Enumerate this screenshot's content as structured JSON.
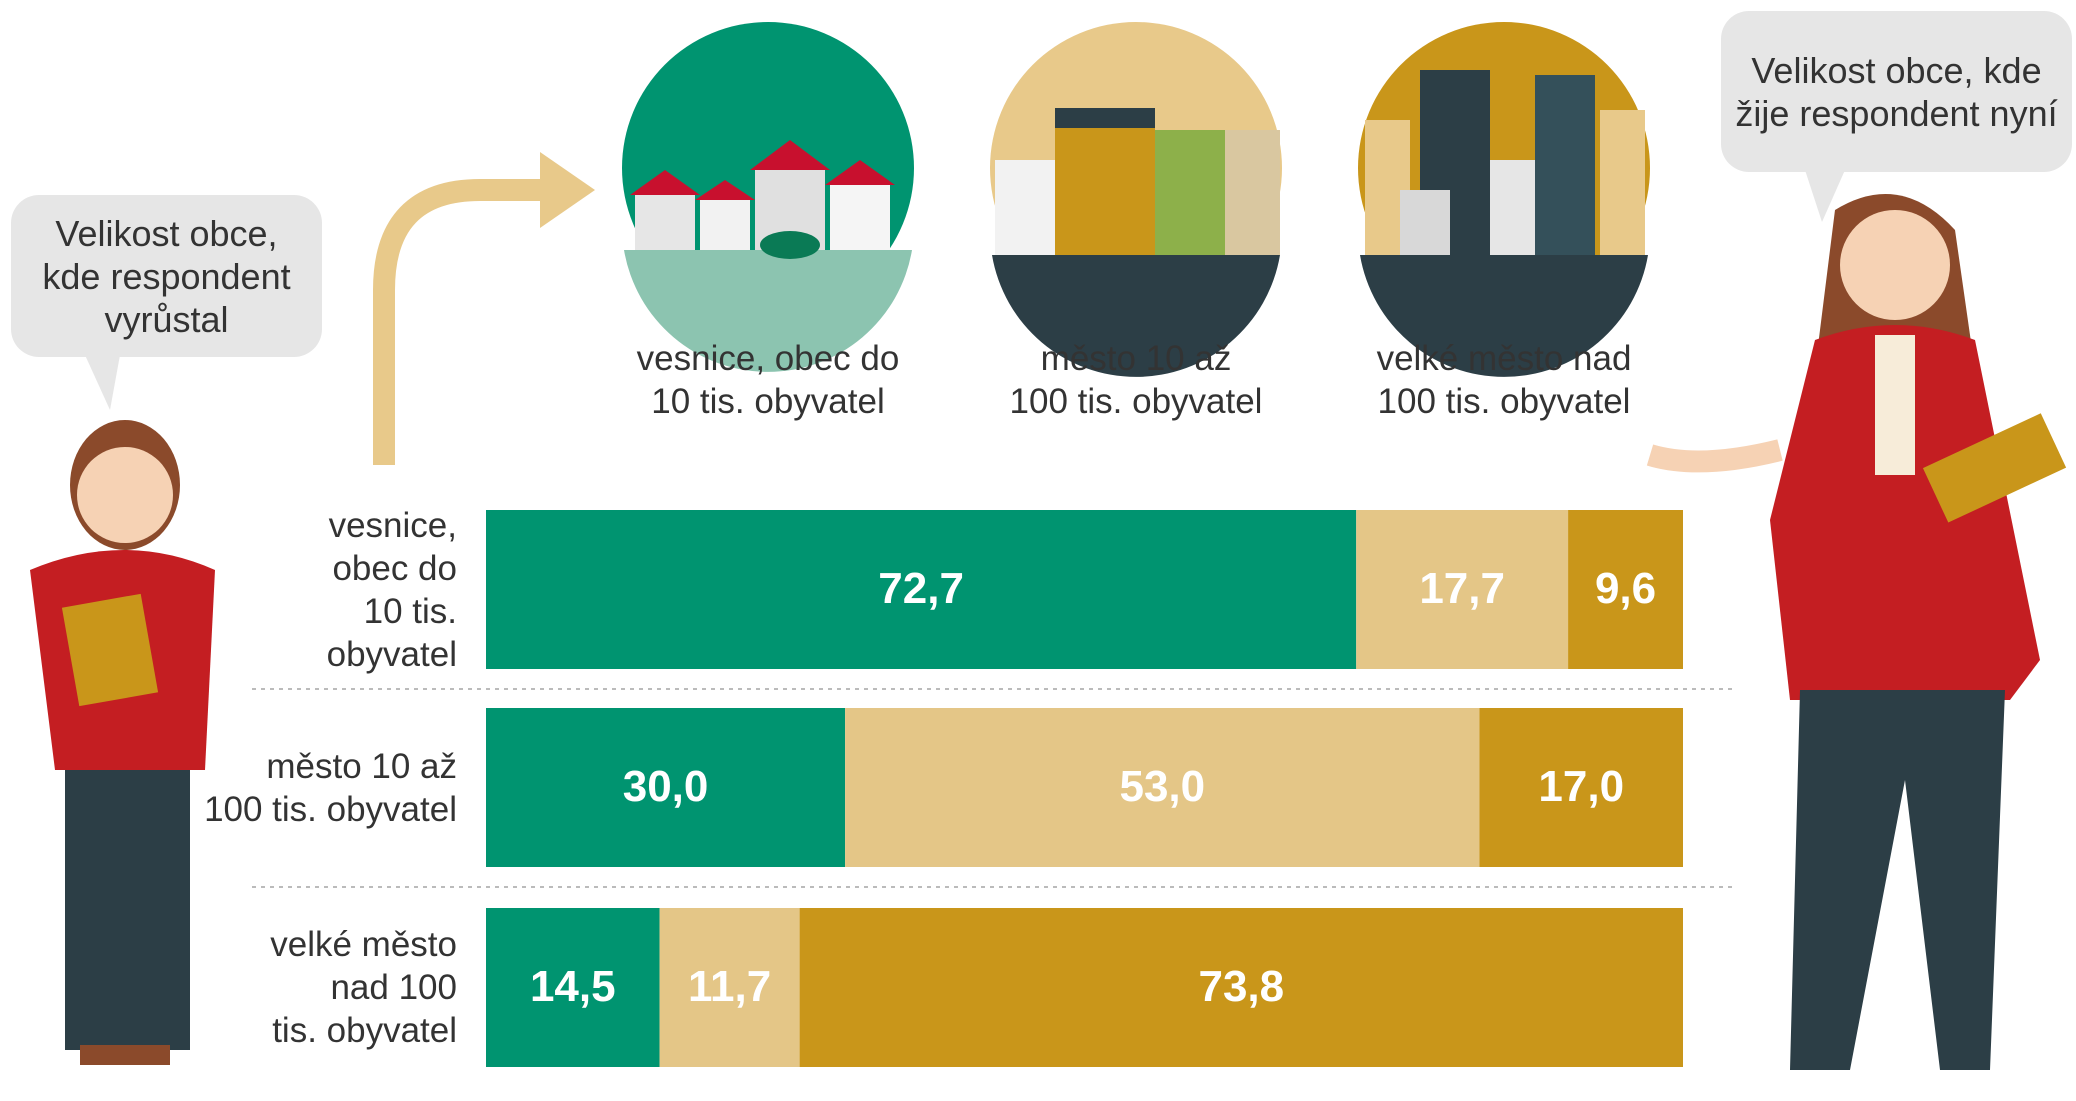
{
  "chart_data": {
    "type": "stacked-bar-horizontal",
    "annotations": [
      "Velikost obce, kde respondent vyrůstal",
      "Velikost obce, kde žije respondent nyní"
    ],
    "categories": [
      "vesnice, obec do 10 tis. obyvatel",
      "město 10 až 100 tis. obyvatel",
      "velké město nad 100 tis. obyvatel"
    ],
    "xlim": [
      0,
      100
    ],
    "series": [
      {
        "name": "vesnice, obec do 10 tis. obyvatel",
        "color": "#009470",
        "values": [
          72.7,
          30.0,
          14.5
        ],
        "value_labels": [
          "72,7",
          "30,0",
          "14,5"
        ]
      },
      {
        "name": "město 10 až 100 tis. obyvatel",
        "color": "#e4c687",
        "values": [
          17.7,
          53.0,
          11.7
        ],
        "value_labels": [
          "17,7",
          "53,0",
          "11,7"
        ]
      },
      {
        "name": "velké město nad 100 tis. obyvatel",
        "color": "#c9961a",
        "values": [
          9.6,
          17.0,
          73.8
        ],
        "value_labels": [
          "9,6",
          "17,0",
          "73,8"
        ]
      }
    ]
  }
}
